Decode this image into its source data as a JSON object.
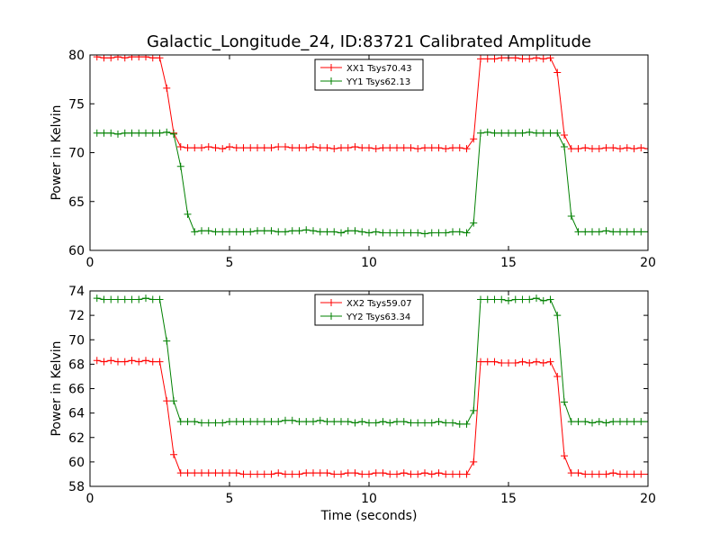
{
  "title": "Galactic_Longitude_24, ID:83721 Calibrated Amplitude",
  "chart_data": [
    {
      "type": "line",
      "ylabel": "Power in Kelvin",
      "xlabel": "",
      "xlim": [
        0,
        20
      ],
      "ylim": [
        60,
        80
      ],
      "xticks": [
        0,
        5,
        10,
        15,
        20
      ],
      "xtick_labels": [
        "0",
        "5",
        "10",
        "15",
        "20"
      ],
      "yticks": [
        60,
        65,
        70,
        75,
        80
      ],
      "ytick_labels": [
        "60",
        "65",
        "70",
        "75",
        "80"
      ],
      "grid": false,
      "legend_position": "top-center",
      "marker": "plus",
      "x": [
        0.25,
        0.5,
        0.75,
        1.0,
        1.25,
        1.5,
        1.75,
        2.0,
        2.25,
        2.5,
        2.75,
        3.0,
        3.25,
        3.5,
        3.75,
        4.0,
        4.25,
        4.5,
        4.75,
        5.0,
        5.25,
        5.5,
        5.75,
        6.0,
        6.25,
        6.5,
        6.75,
        7.0,
        7.25,
        7.5,
        7.75,
        8.0,
        8.25,
        8.5,
        8.75,
        9.0,
        9.25,
        9.5,
        9.75,
        10.0,
        10.25,
        10.5,
        10.75,
        11.0,
        11.25,
        11.5,
        11.75,
        12.0,
        12.25,
        12.5,
        12.75,
        13.0,
        13.25,
        13.5,
        13.75,
        14.0,
        14.25,
        14.5,
        14.75,
        15.0,
        15.25,
        15.5,
        15.75,
        16.0,
        16.25,
        16.5,
        16.75,
        17.0,
        17.25,
        17.5,
        17.75,
        18.0,
        18.25,
        18.5,
        18.75,
        19.0,
        19.25,
        19.5,
        19.75,
        20.0
      ],
      "series": [
        {
          "name": "XX1 Tsys70.43",
          "color": "#ff0000",
          "values": [
            79.8,
            79.7,
            79.7,
            79.8,
            79.7,
            79.8,
            79.8,
            79.8,
            79.7,
            79.7,
            76.6,
            72.0,
            70.6,
            70.5,
            70.5,
            70.5,
            70.6,
            70.5,
            70.4,
            70.6,
            70.5,
            70.5,
            70.5,
            70.5,
            70.5,
            70.5,
            70.6,
            70.6,
            70.5,
            70.5,
            70.5,
            70.6,
            70.5,
            70.5,
            70.4,
            70.5,
            70.5,
            70.6,
            70.5,
            70.5,
            70.4,
            70.5,
            70.5,
            70.5,
            70.5,
            70.5,
            70.4,
            70.5,
            70.5,
            70.5,
            70.4,
            70.5,
            70.5,
            70.4,
            71.4,
            79.6,
            79.6,
            79.6,
            79.7,
            79.7,
            79.7,
            79.6,
            79.6,
            79.7,
            79.6,
            79.7,
            78.2,
            71.8,
            70.4,
            70.4,
            70.5,
            70.4,
            70.4,
            70.5,
            70.5,
            70.4,
            70.5,
            70.4,
            70.5,
            70.4
          ]
        },
        {
          "name": "YY1 Tsys62.13",
          "color": "#008000",
          "values": [
            72.0,
            72.0,
            72.0,
            71.9,
            72.0,
            72.0,
            72.0,
            72.0,
            72.0,
            72.0,
            72.1,
            71.9,
            68.6,
            63.7,
            61.9,
            62.0,
            62.0,
            61.9,
            61.9,
            61.9,
            61.9,
            61.9,
            61.9,
            62.0,
            62.0,
            62.0,
            61.9,
            61.9,
            62.0,
            62.0,
            62.1,
            62.0,
            61.9,
            61.9,
            61.9,
            61.8,
            62.0,
            62.0,
            61.9,
            61.8,
            61.9,
            61.8,
            61.8,
            61.8,
            61.8,
            61.8,
            61.8,
            61.7,
            61.8,
            61.8,
            61.8,
            61.9,
            61.9,
            61.8,
            62.8,
            72.0,
            72.1,
            72.0,
            72.0,
            72.0,
            72.0,
            72.0,
            72.1,
            72.0,
            72.0,
            72.0,
            72.0,
            70.6,
            63.5,
            61.9,
            61.9,
            61.9,
            61.9,
            62.0,
            61.9,
            61.9,
            61.9,
            61.9,
            61.9,
            61.9
          ]
        }
      ]
    },
    {
      "type": "line",
      "ylabel": "Power in Kelvin",
      "xlabel": "Time (seconds)",
      "xlim": [
        0,
        20
      ],
      "ylim": [
        58,
        74
      ],
      "xticks": [
        0,
        5,
        10,
        15,
        20
      ],
      "xtick_labels": [
        "0",
        "5",
        "10",
        "15",
        "20"
      ],
      "yticks": [
        58,
        60,
        62,
        64,
        66,
        68,
        70,
        72,
        74
      ],
      "ytick_labels": [
        "58",
        "60",
        "62",
        "64",
        "66",
        "68",
        "70",
        "72",
        "74"
      ],
      "grid": false,
      "legend_position": "top-center",
      "marker": "plus",
      "x": [
        0.25,
        0.5,
        0.75,
        1.0,
        1.25,
        1.5,
        1.75,
        2.0,
        2.25,
        2.5,
        2.75,
        3.0,
        3.25,
        3.5,
        3.75,
        4.0,
        4.25,
        4.5,
        4.75,
        5.0,
        5.25,
        5.5,
        5.75,
        6.0,
        6.25,
        6.5,
        6.75,
        7.0,
        7.25,
        7.5,
        7.75,
        8.0,
        8.25,
        8.5,
        8.75,
        9.0,
        9.25,
        9.5,
        9.75,
        10.0,
        10.25,
        10.5,
        10.75,
        11.0,
        11.25,
        11.5,
        11.75,
        12.0,
        12.25,
        12.5,
        12.75,
        13.0,
        13.25,
        13.5,
        13.75,
        14.0,
        14.25,
        14.5,
        14.75,
        15.0,
        15.25,
        15.5,
        15.75,
        16.0,
        16.25,
        16.5,
        16.75,
        17.0,
        17.25,
        17.5,
        17.75,
        18.0,
        18.25,
        18.5,
        18.75,
        19.0,
        19.25,
        19.5,
        19.75,
        20.0
      ],
      "series": [
        {
          "name": "XX2 Tsys59.07",
          "color": "#ff0000",
          "values": [
            68.3,
            68.2,
            68.3,
            68.2,
            68.2,
            68.3,
            68.2,
            68.3,
            68.2,
            68.2,
            65.0,
            60.6,
            59.1,
            59.1,
            59.1,
            59.1,
            59.1,
            59.1,
            59.1,
            59.1,
            59.1,
            59.0,
            59.0,
            59.0,
            59.0,
            59.0,
            59.1,
            59.0,
            59.0,
            59.0,
            59.1,
            59.1,
            59.1,
            59.1,
            59.0,
            59.0,
            59.1,
            59.1,
            59.0,
            59.0,
            59.1,
            59.1,
            59.0,
            59.0,
            59.1,
            59.0,
            59.0,
            59.1,
            59.0,
            59.1,
            59.0,
            59.0,
            59.0,
            59.0,
            60.0,
            68.2,
            68.2,
            68.2,
            68.1,
            68.1,
            68.1,
            68.2,
            68.1,
            68.2,
            68.1,
            68.2,
            67.0,
            60.5,
            59.1,
            59.1,
            59.0,
            59.0,
            59.0,
            59.0,
            59.1,
            59.0,
            59.0,
            59.0,
            59.0,
            59.0
          ]
        },
        {
          "name": "YY2 Tsys63.34",
          "color": "#008000",
          "values": [
            73.4,
            73.3,
            73.3,
            73.3,
            73.3,
            73.3,
            73.3,
            73.4,
            73.3,
            73.3,
            69.9,
            65.0,
            63.3,
            63.3,
            63.3,
            63.2,
            63.2,
            63.2,
            63.2,
            63.3,
            63.3,
            63.3,
            63.3,
            63.3,
            63.3,
            63.3,
            63.3,
            63.4,
            63.4,
            63.3,
            63.3,
            63.3,
            63.4,
            63.3,
            63.3,
            63.3,
            63.3,
            63.2,
            63.3,
            63.2,
            63.2,
            63.3,
            63.2,
            63.3,
            63.3,
            63.2,
            63.2,
            63.2,
            63.2,
            63.3,
            63.2,
            63.2,
            63.1,
            63.1,
            64.2,
            73.3,
            73.3,
            73.3,
            73.3,
            73.2,
            73.3,
            73.3,
            73.3,
            73.4,
            73.2,
            73.3,
            72.0,
            64.9,
            63.3,
            63.3,
            63.3,
            63.2,
            63.3,
            63.2,
            63.3,
            63.3,
            63.3,
            63.3,
            63.3,
            63.3
          ]
        }
      ]
    }
  ]
}
